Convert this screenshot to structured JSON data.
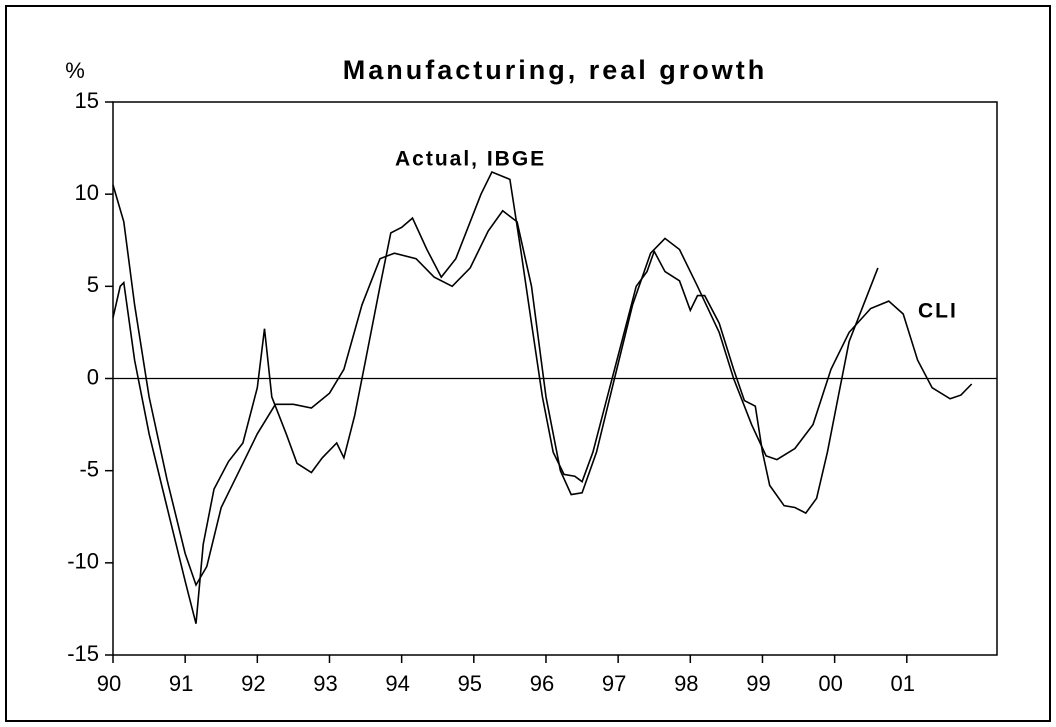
{
  "chart_data": {
    "type": "line",
    "title": "Manufacturing, real growth",
    "y_label": "%",
    "xlim": [
      1990,
      2002.25
    ],
    "ylim": [
      -15,
      15
    ],
    "xticks": [
      {
        "value": 1990,
        "label": "90"
      },
      {
        "value": 1991,
        "label": "91"
      },
      {
        "value": 1992,
        "label": "92"
      },
      {
        "value": 1993,
        "label": "93"
      },
      {
        "value": 1994,
        "label": "94"
      },
      {
        "value": 1995,
        "label": "95"
      },
      {
        "value": 1996,
        "label": "96"
      },
      {
        "value": 1997,
        "label": "97"
      },
      {
        "value": 1998,
        "label": "98"
      },
      {
        "value": 1999,
        "label": "99"
      },
      {
        "value": 2000,
        "label": "00"
      },
      {
        "value": 2001,
        "label": "01"
      }
    ],
    "yticks": [
      15,
      10,
      5,
      0,
      -5,
      -10,
      -15
    ],
    "series": [
      {
        "name": "Actual, IBGE",
        "color": "#000000",
        "x": [
          1990.0,
          1990.1,
          1990.15,
          1990.3,
          1990.5,
          1990.75,
          1991.0,
          1991.15,
          1991.25,
          1991.4,
          1991.6,
          1991.8,
          1992.0,
          1992.1,
          1992.2,
          1992.4,
          1992.55,
          1992.75,
          1992.9,
          1993.1,
          1993.2,
          1993.35,
          1993.5,
          1993.7,
          1993.85,
          1994.0,
          1994.15,
          1994.35,
          1994.55,
          1994.75,
          1994.95,
          1995.1,
          1995.25,
          1995.5,
          1995.65,
          1995.8,
          1995.95,
          1996.1,
          1996.25,
          1996.4,
          1996.5,
          1996.65,
          1996.85,
          1997.05,
          1997.25,
          1997.4,
          1997.5,
          1997.65,
          1997.85,
          1998.0,
          1998.1,
          1998.2,
          1998.4,
          1998.6,
          1998.75,
          1998.9,
          1999.0,
          1999.1,
          1999.3,
          1999.45,
          1999.6,
          1999.75,
          1999.9,
          2000.05,
          2000.2,
          2000.4,
          2000.6
        ],
        "values": [
          3.3,
          5.0,
          5.2,
          1,
          -3,
          -7,
          -11,
          -13.3,
          -9,
          -6,
          -4.5,
          -3.5,
          -0.5,
          2.7,
          -1,
          -3,
          -4.6,
          -5.1,
          -4.3,
          -3.5,
          -4.3,
          -2,
          1,
          5,
          7.9,
          8.2,
          8.7,
          7,
          5.5,
          6.5,
          8.5,
          10,
          11.2,
          10.8,
          7,
          3,
          -1,
          -4,
          -5.2,
          -5.3,
          -5.6,
          -4,
          -1,
          2,
          5,
          5.8,
          6.9,
          5.8,
          5.3,
          3.7,
          4.5,
          4.5,
          3,
          0.5,
          -1.2,
          -1.5,
          -4,
          -5.8,
          -6.9,
          -7,
          -7.3,
          -6.5,
          -4,
          -1,
          2,
          4,
          6
        ]
      },
      {
        "name": "CLI",
        "color": "#000000",
        "x": [
          1990.0,
          1990.15,
          1990.3,
          1990.5,
          1990.75,
          1991.0,
          1991.15,
          1991.3,
          1991.5,
          1991.75,
          1992.0,
          1992.25,
          1992.5,
          1992.75,
          1993.0,
          1993.2,
          1993.45,
          1993.7,
          1993.9,
          1994.2,
          1994.45,
          1994.7,
          1994.95,
          1995.2,
          1995.4,
          1995.6,
          1995.8,
          1996.0,
          1996.2,
          1996.35,
          1996.5,
          1996.7,
          1996.95,
          1997.2,
          1997.45,
          1997.65,
          1997.85,
          1998.1,
          1998.4,
          1998.6,
          1998.85,
          1999.05,
          1999.2,
          1999.45,
          1999.7,
          1999.95,
          2000.2,
          2000.5,
          2000.75,
          2000.95,
          2001.15,
          2001.35,
          2001.6,
          2001.75,
          2001.9
        ],
        "values": [
          10.5,
          8.5,
          4,
          -1,
          -5.5,
          -9.5,
          -11.2,
          -10.2,
          -7,
          -5,
          -3,
          -1.4,
          -1.4,
          -1.6,
          -0.8,
          0.5,
          4,
          6.5,
          6.8,
          6.5,
          5.5,
          5,
          6,
          8,
          9.1,
          8.5,
          5,
          -1,
          -5,
          -6.3,
          -6.2,
          -4,
          0,
          4,
          6.8,
          7.6,
          7,
          5,
          2.5,
          0,
          -2.5,
          -4.2,
          -4.4,
          -3.8,
          -2.5,
          0.5,
          2.5,
          3.8,
          4.2,
          3.5,
          1,
          -0.5,
          -1.1,
          -0.9,
          -0.3
        ]
      }
    ]
  }
}
